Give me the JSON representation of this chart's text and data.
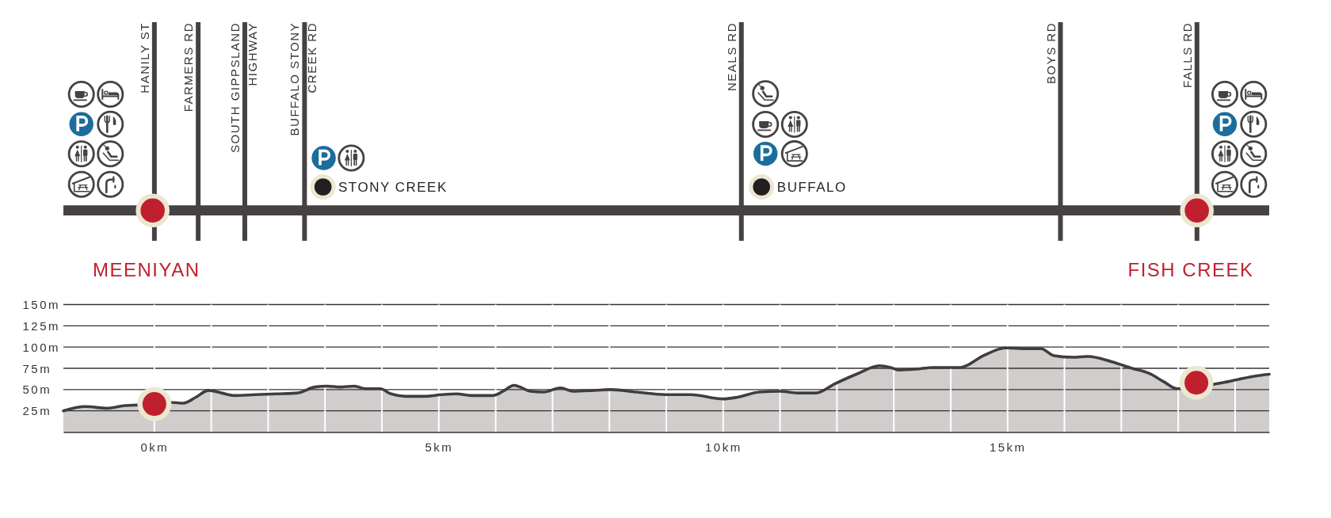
{
  "chart_data": {
    "type": "area",
    "series": [
      {
        "color": "#d0cdcc",
        "x": [
          -1.6,
          -1.21,
          -0.83,
          -0.54,
          -0.25,
          0.28,
          0.51,
          0.73,
          0.95,
          1.18,
          1.4,
          1.77,
          2.15,
          2.52,
          2.82,
          3.04,
          3.26,
          3.52,
          3.71,
          3.97,
          4.16,
          4.46,
          4.75,
          5.05,
          5.31,
          5.57,
          5.95,
          6.13,
          6.32,
          6.62,
          6.84,
          7.14,
          7.36,
          7.73,
          8.03,
          8.48,
          8.99,
          9.43,
          10,
          10.25,
          10.63,
          11,
          11.3,
          11.63,
          11.97,
          12.34,
          12.75,
          12.94,
          13.09,
          13.39,
          13.69,
          14.17,
          14.58,
          14.96,
          15.33,
          15.59,
          15.81,
          16.15,
          16.41,
          16.82,
          17.19,
          17.49,
          17.75,
          17.98,
          18.69,
          19.06,
          19.36,
          19.6
        ],
        "values": [
          25,
          30,
          28,
          31,
          32,
          35,
          34,
          41,
          49,
          46,
          43,
          44,
          45,
          46,
          53,
          54,
          53,
          54,
          51,
          51,
          45,
          42,
          42,
          44,
          45,
          43,
          43,
          48,
          55,
          48,
          47,
          52,
          48,
          49,
          50,
          47,
          44,
          44,
          39,
          41,
          47,
          48,
          46,
          46,
          57,
          68,
          78,
          76,
          73,
          74,
          76,
          76,
          90,
          99,
          98,
          98,
          90,
          88,
          89,
          83,
          75,
          69,
          59,
          51,
          57,
          62,
          66,
          68
        ]
      },
      {
        "type": "scatter",
        "marker": "circle",
        "color": "#c0202d",
        "x": [
          0,
          18.32
        ],
        "values": [
          33,
          58
        ]
      }
    ],
    "xlim": [
      -1.6,
      19.6
    ],
    "ylim": [
      0,
      150
    ],
    "xticks": [
      {
        "value": 0,
        "label": "0km"
      },
      {
        "value": 1,
        "label": null
      },
      {
        "value": 2,
        "label": null
      },
      {
        "value": 3,
        "label": null
      },
      {
        "value": 4,
        "label": null
      },
      {
        "value": 5,
        "label": "5km"
      },
      {
        "value": 6,
        "label": null
      },
      {
        "value": 7,
        "label": null
      },
      {
        "value": 8,
        "label": null
      },
      {
        "value": 9,
        "label": null
      },
      {
        "value": 10,
        "label": "10km"
      },
      {
        "value": 11,
        "label": null
      },
      {
        "value": 12,
        "label": null
      },
      {
        "value": 13,
        "label": null
      },
      {
        "value": 14,
        "label": null
      },
      {
        "value": 15,
        "label": "15km"
      },
      {
        "value": 16,
        "label": null
      },
      {
        "value": 17,
        "label": null
      },
      {
        "value": 18,
        "label": null
      },
      {
        "value": 19,
        "label": null
      }
    ],
    "yticks": [
      {
        "value": 25,
        "label": "25m"
      },
      {
        "value": 50,
        "label": "50m"
      },
      {
        "value": 75,
        "label": "75m"
      },
      {
        "value": 100,
        "label": "100m"
      },
      {
        "value": 125,
        "label": "125m"
      },
      {
        "value": 150,
        "label": "150m"
      }
    ],
    "grid": true,
    "ref_lines": [
      {
        "axis": "x",
        "value": 0,
        "label": "HANILY ST"
      },
      {
        "axis": "x",
        "value": 0.77,
        "label": "FARMERS RD"
      },
      {
        "axis": "x",
        "value": 1.59,
        "label": "SOUTH GIPPSLAND HIGHWAY"
      },
      {
        "axis": "x",
        "value": 2.64,
        "label": "BUFFALO STONY CREEK RD"
      },
      {
        "axis": "x",
        "value": 10.32,
        "label": "NEALS RD"
      },
      {
        "axis": "x",
        "value": 15.93,
        "label": "BOYS RD"
      },
      {
        "axis": "x",
        "value": 18.33,
        "label": "FALLS RD"
      }
    ],
    "annotations": [
      "MEENIYAN",
      "FISH CREEK",
      "STONY CREEK",
      "BUFFALO"
    ]
  }
}
